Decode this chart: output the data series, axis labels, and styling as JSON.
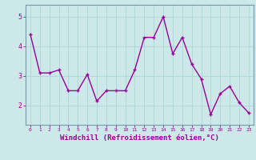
{
  "x": [
    0,
    1,
    2,
    3,
    4,
    5,
    6,
    7,
    8,
    9,
    10,
    11,
    12,
    13,
    14,
    15,
    16,
    17,
    18,
    19,
    20,
    21,
    22,
    23
  ],
  "y": [
    4.4,
    3.1,
    3.1,
    3.2,
    2.5,
    2.5,
    3.05,
    2.15,
    2.5,
    2.5,
    2.5,
    3.2,
    4.3,
    4.3,
    5.0,
    3.75,
    4.3,
    3.4,
    2.9,
    1.7,
    2.4,
    2.65,
    2.1,
    1.75
  ],
  "line_color": "#990099",
  "marker": "+",
  "marker_size": 3,
  "xlabel": "Windchill (Refroidissement éolien,°C)",
  "xlabel_fontsize": 6.5,
  "ylabel_ticks": [
    2,
    3,
    4,
    5
  ],
  "xlim": [
    -0.5,
    23.5
  ],
  "ylim": [
    1.35,
    5.4
  ],
  "bg_color": "#cce8e8",
  "grid_color": "#aad4d4",
  "tick_color": "#990099",
  "label_color": "#990099",
  "line_width": 1.0
}
